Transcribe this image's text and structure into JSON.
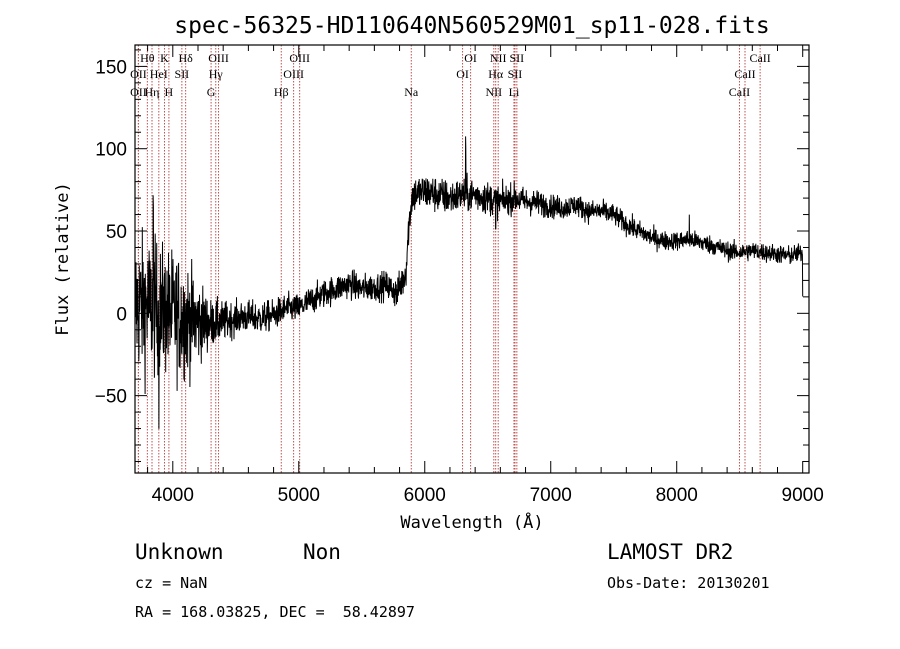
{
  "footer": {
    "object_class": "Unknown",
    "object_subclass": "Non",
    "redshift": "cz = NaN",
    "coords": "RA = 168.03825, DEC =  58.42897",
    "survey": "LAMOST DR2",
    "obs_date": "Obs-Date: 20130201"
  },
  "chart_data": {
    "type": "line",
    "title": "spec-56325-HD110640N560529M01_sp11-028.fits",
    "xlabel": "Wavelength (Å)",
    "ylabel": "Flux (relative)",
    "xlim": [
      3700,
      9050
    ],
    "ylim": [
      -97,
      163
    ],
    "xticks": [
      4000,
      5000,
      6000,
      7000,
      8000,
      9000
    ],
    "yticks": [
      -50,
      0,
      50,
      100,
      150
    ],
    "grid": false,
    "line_color": "#000000",
    "marker_color": "#c0504d",
    "spectral_lines": [
      {
        "label": "OII",
        "wavelength": 3727,
        "row": 2
      },
      {
        "label": "Hθ",
        "wavelength": 3798,
        "row": 0
      },
      {
        "label": "OII",
        "wavelength": 3727,
        "row": 1
      },
      {
        "label": "Hη",
        "wavelength": 3835,
        "row": 2
      },
      {
        "label": "HeI",
        "wavelength": 3889,
        "row": 1
      },
      {
        "label": "K",
        "wavelength": 3934,
        "row": 0
      },
      {
        "label": "H",
        "wavelength": 3969,
        "row": 2
      },
      {
        "label": "SII",
        "wavelength": 4072,
        "row": 1
      },
      {
        "label": "Hδ",
        "wavelength": 4102,
        "row": 0
      },
      {
        "label": "G",
        "wavelength": 4304,
        "row": 2
      },
      {
        "label": "Hγ",
        "wavelength": 4341,
        "row": 1
      },
      {
        "label": "OIII",
        "wavelength": 4363,
        "row": 0
      },
      {
        "label": "Hβ",
        "wavelength": 4861,
        "row": 2
      },
      {
        "label": "OIII",
        "wavelength": 4959,
        "row": 1
      },
      {
        "label": "OIII",
        "wavelength": 5007,
        "row": 0
      },
      {
        "label": "Na",
        "wavelength": 5893,
        "row": 2
      },
      {
        "label": "OI",
        "wavelength": 6300,
        "row": 1
      },
      {
        "label": "OI",
        "wavelength": 6364,
        "row": 0
      },
      {
        "label": "NII",
        "wavelength": 6548,
        "row": 2
      },
      {
        "label": "Hα",
        "wavelength": 6563,
        "row": 1
      },
      {
        "label": "NII",
        "wavelength": 6583,
        "row": 0
      },
      {
        "label": "Li",
        "wavelength": 6708,
        "row": 2
      },
      {
        "label": "SII",
        "wavelength": 6716,
        "row": 1
      },
      {
        "label": "SII",
        "wavelength": 6731,
        "row": 0
      },
      {
        "label": "CaII",
        "wavelength": 8498,
        "row": 2
      },
      {
        "label": "CaII",
        "wavelength": 8542,
        "row": 1
      },
      {
        "label": "CaII",
        "wavelength": 8662,
        "row": 0
      }
    ],
    "continuum": [
      [
        3700,
        5
      ],
      [
        3800,
        5
      ],
      [
        3900,
        2
      ],
      [
        4000,
        0
      ],
      [
        4100,
        -3
      ],
      [
        4200,
        -5
      ],
      [
        4300,
        -6
      ],
      [
        4400,
        -5
      ],
      [
        4500,
        -3
      ],
      [
        4600,
        -2
      ],
      [
        4700,
        -3
      ],
      [
        4800,
        -1
      ],
      [
        4900,
        3
      ],
      [
        5000,
        3
      ],
      [
        5100,
        8
      ],
      [
        5200,
        12
      ],
      [
        5300,
        15
      ],
      [
        5400,
        18
      ],
      [
        5500,
        15
      ],
      [
        5600,
        16
      ],
      [
        5700,
        17
      ],
      [
        5780,
        12
      ],
      [
        5850,
        25
      ],
      [
        5870,
        50
      ],
      [
        5900,
        72
      ],
      [
        6000,
        74
      ],
      [
        6100,
        72
      ],
      [
        6200,
        70
      ],
      [
        6300,
        72
      ],
      [
        6400,
        72
      ],
      [
        6500,
        70
      ],
      [
        6600,
        68
      ],
      [
        6700,
        70
      ],
      [
        6800,
        68
      ],
      [
        6900,
        67
      ],
      [
        7000,
        65
      ],
      [
        7100,
        64
      ],
      [
        7200,
        66
      ],
      [
        7300,
        62
      ],
      [
        7400,
        62
      ],
      [
        7500,
        60
      ],
      [
        7600,
        54
      ],
      [
        7700,
        50
      ],
      [
        7800,
        46
      ],
      [
        7900,
        44
      ],
      [
        8000,
        44
      ],
      [
        8100,
        45
      ],
      [
        8200,
        43
      ],
      [
        8300,
        41
      ],
      [
        8400,
        38
      ],
      [
        8500,
        37
      ],
      [
        8600,
        38
      ],
      [
        8700,
        37
      ],
      [
        8800,
        36
      ],
      [
        8900,
        35
      ],
      [
        9000,
        37
      ]
    ],
    "noise": [
      [
        3700,
        30
      ],
      [
        4100,
        25
      ],
      [
        4300,
        10
      ],
      [
        4500,
        7
      ],
      [
        5000,
        6
      ],
      [
        5700,
        6
      ],
      [
        5900,
        8
      ],
      [
        6500,
        7
      ],
      [
        7000,
        5
      ],
      [
        8000,
        4
      ],
      [
        9000,
        4
      ]
    ],
    "features": [
      {
        "wavelength": 3890,
        "depth": -85
      },
      {
        "wavelength": 3845,
        "depth": 60
      },
      {
        "wavelength": 6325,
        "depth": 25
      },
      {
        "wavelength": 6563,
        "depth": -18
      },
      {
        "wavelength": 8100,
        "depth": 14
      },
      {
        "wavelength": 9000,
        "depth": -30
      }
    ]
  }
}
